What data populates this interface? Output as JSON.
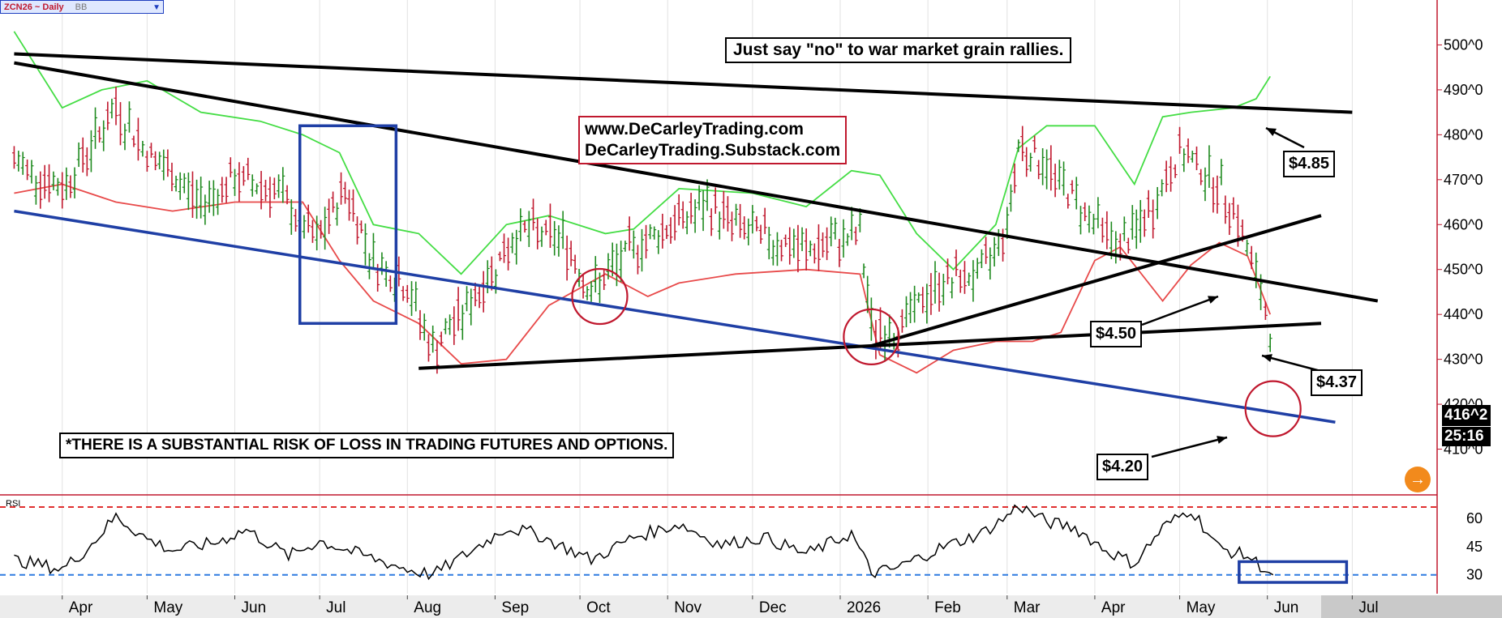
{
  "symbol_bar": {
    "symbol": "ZCN26 ~ Daily",
    "study": "BB"
  },
  "chart_data": [
    {
      "type": "line",
      "title": "ZCN26 ~ Daily",
      "subtitle": "",
      "xlabel": "",
      "ylabel": "",
      "grid": "vertical",
      "y_tick_labels": [
        "410^0",
        "420^0",
        "430^0",
        "440^0",
        "450^0",
        "460^0",
        "470^0",
        "480^0",
        "490^0",
        "500^0"
      ],
      "x_tick_labels": [
        "Apr",
        "May",
        "Jun",
        "Jul",
        "Aug",
        "Sep",
        "Oct",
        "Nov",
        "Dec",
        "2026",
        "Feb",
        "Mar",
        "Apr",
        "May",
        "Jun",
        "Jul"
      ],
      "ylim": [
        400,
        510
      ],
      "current_price": "416^2",
      "time_remaining": "25:16",
      "series": [
        {
          "role": "price",
          "color": "#1f8a1f",
          "x": [
            "2025-03-15",
            "2025-04-01",
            "2025-04-20",
            "2025-05-01",
            "2025-05-20",
            "2025-06-01",
            "2025-06-15",
            "2025-06-30",
            "2025-07-10",
            "2025-07-20",
            "2025-08-01",
            "2025-08-10",
            "2025-08-25",
            "2025-09-10",
            "2025-09-25",
            "2025-10-05",
            "2025-10-20",
            "2025-11-05",
            "2025-11-15",
            "2025-12-01",
            "2025-12-20",
            "2026-01-08",
            "2026-01-12",
            "2026-01-20",
            "2026-02-05",
            "2026-02-20",
            "2026-03-01",
            "2026-03-05",
            "2026-03-15",
            "2026-03-30",
            "2026-04-10",
            "2026-04-20",
            "2026-05-01",
            "2026-05-10",
            "2026-05-20",
            "2026-05-28",
            "2026-06-02",
            "2026-06-04"
          ],
          "y": [
            474,
            468,
            486,
            476,
            465,
            470,
            468,
            456,
            468,
            452,
            446,
            432,
            444,
            459,
            457,
            445,
            455,
            461,
            464,
            458,
            454,
            458,
            437,
            436,
            447,
            449,
            460,
            478,
            473,
            462,
            455,
            462,
            476,
            472,
            464,
            448,
            437,
            416
          ]
        },
        {
          "role": "upper-band",
          "color": "#44dd44",
          "x": [
            "2025-03-15",
            "2025-04-01",
            "2025-04-15",
            "2025-05-01",
            "2025-05-20",
            "2025-06-10",
            "2025-06-25",
            "2025-07-08",
            "2025-07-20",
            "2025-08-05",
            "2025-08-20",
            "2025-09-05",
            "2025-09-20",
            "2025-10-10",
            "2025-10-20",
            "2025-11-05",
            "2025-12-01",
            "2025-12-20",
            "2026-01-05",
            "2026-01-15",
            "2026-01-28",
            "2026-02-10",
            "2026-02-25",
            "2026-03-05",
            "2026-03-15",
            "2026-04-01",
            "2026-04-15",
            "2026-04-25",
            "2026-05-05",
            "2026-05-20",
            "2026-05-28",
            "2026-06-02"
          ],
          "y": [
            503,
            486,
            490,
            492,
            485,
            483,
            480,
            476,
            460,
            458,
            449,
            460,
            462,
            458,
            459,
            468,
            467,
            464,
            472,
            471,
            458,
            450,
            460,
            477,
            482,
            482,
            469,
            484,
            485,
            486,
            488,
            493
          ]
        },
        {
          "role": "lower-band",
          "color": "#e84a4a",
          "x": [
            "2025-03-15",
            "2025-04-01",
            "2025-04-20",
            "2025-05-10",
            "2025-06-01",
            "2025-06-25",
            "2025-07-08",
            "2025-07-20",
            "2025-08-05",
            "2025-08-20",
            "2025-09-05",
            "2025-09-20",
            "2025-10-10",
            "2025-10-25",
            "2025-11-05",
            "2025-11-25",
            "2025-12-20",
            "2026-01-08",
            "2026-01-15",
            "2026-01-28",
            "2026-02-10",
            "2026-02-25",
            "2026-03-10",
            "2026-03-20",
            "2026-04-01",
            "2026-04-10",
            "2026-04-25",
            "2026-05-05",
            "2026-05-15",
            "2026-05-25",
            "2026-06-02"
          ],
          "y": [
            467,
            469,
            465,
            463,
            465,
            465,
            452,
            443,
            438,
            429,
            430,
            442,
            449,
            444,
            447,
            449,
            450,
            449,
            431,
            427,
            432,
            434,
            434,
            436,
            452,
            455,
            443,
            451,
            456,
            453,
            440
          ]
        }
      ],
      "trendlines": [
        {
          "role": "upper-resistance",
          "color": "#000000",
          "x": [
            "2025-03-15",
            "2026-07-01"
          ],
          "y": [
            498,
            485
          ]
        },
        {
          "role": "mid-trendline",
          "color": "#000000",
          "x": [
            "2025-03-15",
            "2026-07-10"
          ],
          "y": [
            496,
            443
          ]
        },
        {
          "role": "lower-support",
          "color": "#1f3fa5",
          "x": [
            "2025-03-15",
            "2026-06-25"
          ],
          "y": [
            463,
            416
          ]
        },
        {
          "role": "base-trendline",
          "color": "#000000",
          "x": [
            "2025-08-05",
            "2026-06-20"
          ],
          "y": [
            428,
            438
          ]
        },
        {
          "role": "rising-trendline",
          "color": "#000000",
          "x": [
            "2026-01-12",
            "2026-06-20"
          ],
          "y": [
            433,
            462
          ]
        }
      ]
    },
    {
      "type": "line",
      "title": "RSI",
      "subtitle": "",
      "xlabel": "",
      "ylabel": "",
      "ylim": [
        20,
        72
      ],
      "y_tick_labels": [
        "30",
        "45",
        "60"
      ],
      "x_tick_labels": [
        "Apr",
        "May",
        "Jun",
        "Jul",
        "Aug",
        "Sep",
        "Oct",
        "Nov",
        "Dec",
        "2026",
        "Feb",
        "Mar",
        "Apr",
        "May",
        "Jun",
        "Jul"
      ],
      "reference_lines": [
        {
          "value": 66,
          "color": "#e03030"
        },
        {
          "value": 30,
          "color": "#2f7be0"
        }
      ],
      "series": [
        {
          "role": "rsi",
          "color": "#000000",
          "x": [
            "2025-03-15",
            "2025-04-01",
            "2025-04-10",
            "2025-04-20",
            "2025-05-01",
            "2025-05-10",
            "2025-05-25",
            "2025-06-05",
            "2025-06-20",
            "2025-07-01",
            "2025-07-15",
            "2025-08-01",
            "2025-08-10",
            "2025-08-25",
            "2025-09-05",
            "2025-09-15",
            "2025-10-05",
            "2025-10-20",
            "2025-11-05",
            "2025-11-20",
            "2025-12-05",
            "2025-12-20",
            "2026-01-05",
            "2026-01-12",
            "2026-01-20",
            "2026-02-05",
            "2026-02-20",
            "2026-03-01",
            "2026-03-05",
            "2026-03-15",
            "2026-03-25",
            "2026-04-05",
            "2026-04-15",
            "2026-04-25",
            "2026-05-05",
            "2026-05-15",
            "2026-05-25",
            "2026-06-03"
          ],
          "y": [
            38,
            33,
            44,
            61,
            49,
            43,
            47,
            54,
            40,
            48,
            41,
            33,
            30,
            44,
            55,
            52,
            38,
            50,
            57,
            46,
            50,
            41,
            52,
            31,
            33,
            44,
            52,
            61,
            67,
            58,
            55,
            43,
            36,
            55,
            65,
            44,
            40,
            30
          ]
        }
      ]
    }
  ],
  "annotations": {
    "headline": "Just say \"no\" to war market grain rallies.",
    "site_line1": "www.DeCarleyTrading.com",
    "site_line2": "DeCarleyTrading.Substack.com",
    "disclaimer": "*THERE IS A SUBSTANTIAL RISK OF LOSS IN TRADING FUTURES AND OPTIONS.",
    "callouts": [
      "$4.85",
      "$4.50",
      "$4.37",
      "$4.20"
    ]
  },
  "colors": {
    "accent_price": "#c0182e",
    "upper_band": "#44dd44",
    "lower_band": "#e84a4a",
    "nav_button": "#f28a1c"
  },
  "icons": {
    "dropdown": "chevron-down-icon",
    "nav": "arrow-right-icon"
  }
}
